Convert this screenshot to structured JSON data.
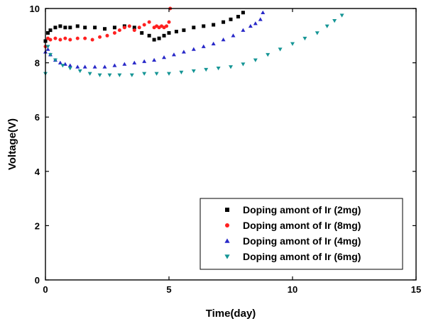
{
  "chart_data": {
    "type": "scatter",
    "title": "",
    "xlabel": "Time(day)",
    "ylabel": "Voltage(V)",
    "xlim": [
      0,
      15
    ],
    "ylim": [
      0,
      10
    ],
    "xticks": [
      0,
      5,
      10,
      15
    ],
    "yticks": [
      0,
      2,
      4,
      6,
      8,
      10
    ],
    "grid": false,
    "legend_position": "bottom-right",
    "series": [
      {
        "name": "Doping amont of Ir (2mg)",
        "marker": "square",
        "color": "#000000",
        "x": [
          0.0,
          0.1,
          0.2,
          0.4,
          0.6,
          0.8,
          1.0,
          1.3,
          1.6,
          2.0,
          2.4,
          2.8,
          3.2,
          3.6,
          3.9,
          4.2,
          4.4,
          4.6,
          4.8,
          5.0,
          5.3,
          5.6,
          6.0,
          6.4,
          6.8,
          7.2,
          7.5,
          7.8,
          8.0
        ],
        "y": [
          8.8,
          9.1,
          9.2,
          9.3,
          9.35,
          9.3,
          9.3,
          9.35,
          9.3,
          9.3,
          9.25,
          9.3,
          9.35,
          9.3,
          9.1,
          9.0,
          8.85,
          8.9,
          9.0,
          9.1,
          9.15,
          9.2,
          9.3,
          9.35,
          9.4,
          9.5,
          9.6,
          9.7,
          9.85
        ]
      },
      {
        "name": "Doping amont of Ir (8mg)",
        "marker": "circle",
        "color": "#ff2020",
        "x": [
          0.0,
          0.1,
          0.2,
          0.4,
          0.6,
          0.8,
          1.0,
          1.3,
          1.6,
          1.9,
          2.2,
          2.5,
          2.8,
          3.0,
          3.2,
          3.4,
          3.6,
          3.8,
          4.0,
          4.2,
          4.4,
          4.5,
          4.6,
          4.7,
          4.8,
          4.9,
          5.0,
          5.05
        ],
        "y": [
          8.6,
          8.9,
          8.85,
          8.9,
          8.85,
          8.9,
          8.85,
          8.9,
          8.9,
          8.85,
          8.95,
          9.0,
          9.1,
          9.2,
          9.3,
          9.35,
          9.2,
          9.3,
          9.4,
          9.5,
          9.3,
          9.35,
          9.3,
          9.35,
          9.3,
          9.35,
          9.5,
          10.0
        ]
      },
      {
        "name": "Doping amont of Ir (4mg)",
        "marker": "triangle-up",
        "color": "#2828c8",
        "x": [
          0.0,
          0.1,
          0.2,
          0.4,
          0.6,
          0.8,
          1.0,
          1.3,
          1.6,
          2.0,
          2.4,
          2.8,
          3.2,
          3.6,
          4.0,
          4.4,
          4.8,
          5.2,
          5.6,
          6.0,
          6.4,
          6.8,
          7.2,
          7.6,
          8.0,
          8.3,
          8.5,
          8.7,
          8.8
        ],
        "y": [
          8.4,
          8.5,
          8.3,
          8.1,
          8.0,
          7.95,
          7.9,
          7.85,
          7.85,
          7.85,
          7.85,
          7.9,
          7.95,
          8.0,
          8.05,
          8.1,
          8.2,
          8.3,
          8.4,
          8.5,
          8.6,
          8.7,
          8.85,
          9.0,
          9.2,
          9.35,
          9.45,
          9.6,
          9.85
        ]
      },
      {
        "name": "Doping amont of Ir (6mg)",
        "marker": "triangle-down",
        "color": "#159595",
        "x": [
          0.0,
          0.1,
          0.2,
          0.4,
          0.7,
          1.0,
          1.4,
          1.8,
          2.2,
          2.6,
          3.0,
          3.5,
          4.0,
          4.5,
          5.0,
          5.5,
          6.0,
          6.5,
          7.0,
          7.5,
          8.0,
          8.5,
          9.0,
          9.5,
          10.0,
          10.5,
          11.0,
          11.4,
          11.7,
          12.0
        ],
        "y": [
          7.6,
          8.6,
          8.3,
          8.1,
          7.9,
          7.8,
          7.7,
          7.6,
          7.55,
          7.55,
          7.55,
          7.55,
          7.6,
          7.6,
          7.6,
          7.65,
          7.7,
          7.75,
          7.8,
          7.85,
          7.95,
          8.1,
          8.3,
          8.5,
          8.7,
          8.9,
          9.1,
          9.35,
          9.55,
          9.75
        ]
      }
    ]
  }
}
